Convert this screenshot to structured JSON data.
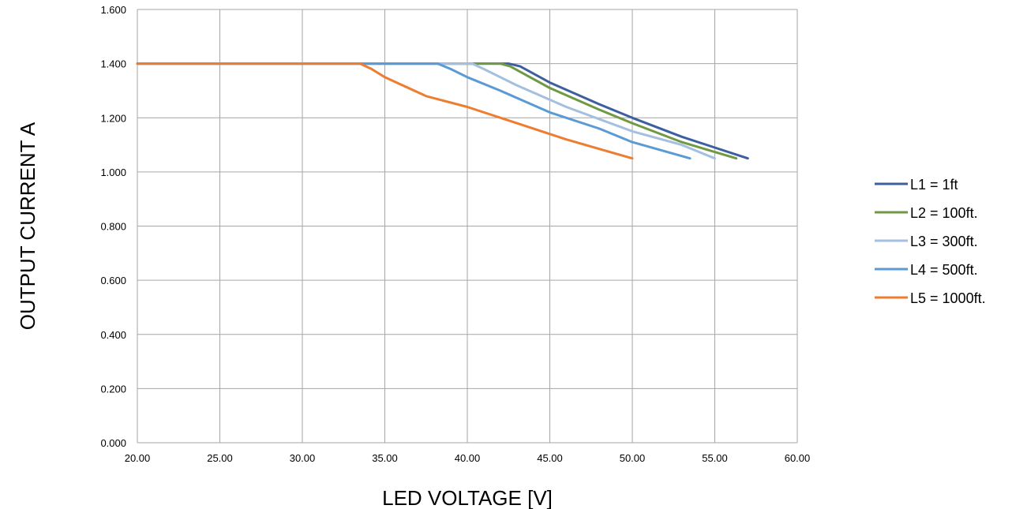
{
  "chart_data": {
    "type": "line",
    "title": "",
    "xlabel": "LED VOLTAGE [V]",
    "ylabel": "OUTPUT CURRENT A",
    "xlim": [
      20,
      60
    ],
    "ylim": [
      0,
      1.6
    ],
    "x_ticks": [
      "20.00",
      "25.00",
      "30.00",
      "35.00",
      "40.00",
      "45.00",
      "50.00",
      "55.00",
      "60.00"
    ],
    "y_ticks": [
      "0.000",
      "0.200",
      "0.400",
      "0.600",
      "0.800",
      "1.000",
      "1.200",
      "1.400",
      "1.600"
    ],
    "grid": true,
    "legend_position": "right",
    "series": [
      {
        "name": "L1 = 1ft",
        "color": "#3d5f9f",
        "points": [
          [
            20,
            1.4
          ],
          [
            42.5,
            1.4
          ],
          [
            43.2,
            1.39
          ],
          [
            45,
            1.33
          ],
          [
            48,
            1.25
          ],
          [
            50,
            1.2
          ],
          [
            53,
            1.13
          ],
          [
            55,
            1.09
          ],
          [
            57,
            1.05
          ]
        ]
      },
      {
        "name": "L2 = 100ft.",
        "color": "#6f9a43",
        "points": [
          [
            20,
            1.4
          ],
          [
            42,
            1.4
          ],
          [
            42.6,
            1.39
          ],
          [
            45,
            1.31
          ],
          [
            48,
            1.23
          ],
          [
            50,
            1.18
          ],
          [
            53,
            1.11
          ],
          [
            56.3,
            1.05
          ]
        ]
      },
      {
        "name": "L3 = 300ft.",
        "color": "#a4bfe0",
        "points": [
          [
            20,
            1.4
          ],
          [
            40.3,
            1.4
          ],
          [
            41,
            1.38
          ],
          [
            43,
            1.32
          ],
          [
            46,
            1.24
          ],
          [
            50,
            1.15
          ],
          [
            53,
            1.1
          ],
          [
            55,
            1.05
          ]
        ]
      },
      {
        "name": "L4 = 500ft.",
        "color": "#5b9bd5",
        "points": [
          [
            20,
            1.4
          ],
          [
            38.2,
            1.4
          ],
          [
            39,
            1.38
          ],
          [
            40,
            1.35
          ],
          [
            42,
            1.3
          ],
          [
            45,
            1.22
          ],
          [
            48,
            1.16
          ],
          [
            50,
            1.11
          ],
          [
            53.5,
            1.05
          ]
        ]
      },
      {
        "name": "L5 = 1000ft.",
        "color": "#ed7d31",
        "points": [
          [
            20,
            1.4
          ],
          [
            33.5,
            1.4
          ],
          [
            34.2,
            1.38
          ],
          [
            35,
            1.35
          ],
          [
            37.5,
            1.28
          ],
          [
            40,
            1.24
          ],
          [
            43,
            1.18
          ],
          [
            46,
            1.12
          ],
          [
            50,
            1.05
          ]
        ]
      }
    ]
  }
}
